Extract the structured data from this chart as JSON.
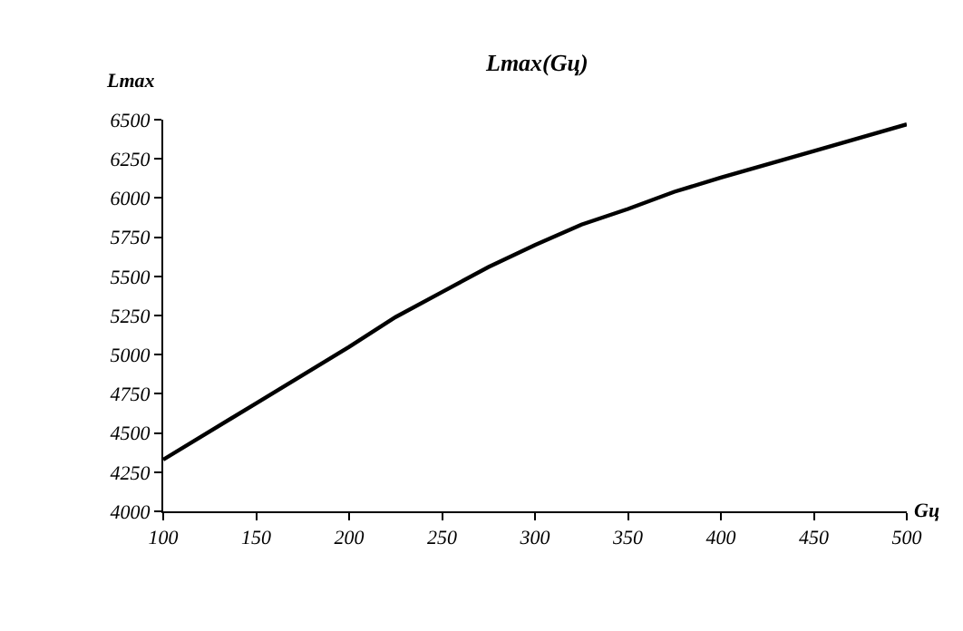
{
  "chart_data": {
    "type": "line",
    "title": "Lmax(Gц)",
    "xlabel": "Gц",
    "ylabel": "Lmax",
    "x": [
      100,
      150,
      200,
      225,
      250,
      275,
      300,
      325,
      350,
      375,
      400,
      450,
      500
    ],
    "series": [
      {
        "color": "#000000",
        "values": [
          4330,
          4690,
          5050,
          5240,
          5400,
          5560,
          5700,
          5830,
          5930,
          6040,
          6130,
          6300,
          6470
        ]
      }
    ],
    "xlim": [
      100,
      500
    ],
    "xticks": [
      100,
      150,
      200,
      250,
      300,
      350,
      400,
      450,
      500
    ],
    "ylim": [
      4000,
      6500
    ],
    "yticks": [
      4000,
      4250,
      4500,
      4750,
      5000,
      5250,
      5500,
      5750,
      6000,
      6250,
      6500
    ],
    "marker": "none",
    "line_style": "solid"
  }
}
